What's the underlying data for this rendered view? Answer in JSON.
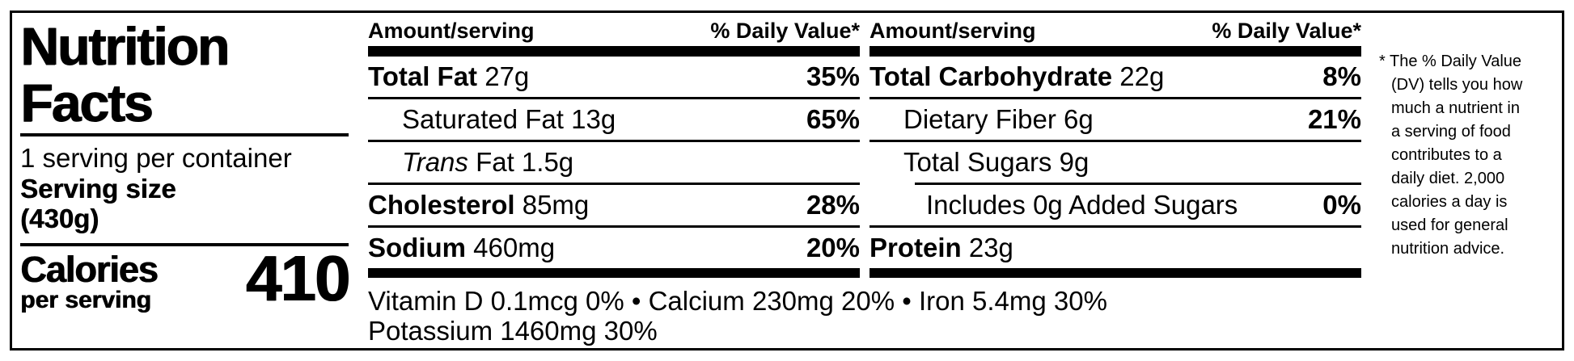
{
  "label": {
    "title_line1": "Nutrition",
    "title_line2": "Facts",
    "servings_per_container": "1 serving per container",
    "serving_size_label": "Serving size",
    "serving_size_value": "(430g)",
    "calories_label": "Calories",
    "calories_sublabel": "per serving",
    "calories_value": "410"
  },
  "columns": {
    "amount_header": "Amount/serving",
    "dv_header": "% Daily Value*",
    "middle": {
      "rows": [
        {
          "bold": "Total Fat",
          "italic": "",
          "rest": " 27g",
          "dv": "35%"
        },
        {
          "bold": "",
          "italic": "",
          "rest": "Saturated Fat 13g",
          "dv": "65%"
        },
        {
          "bold": "",
          "italic": "Trans",
          "rest": " Fat 1.5g",
          "dv": ""
        },
        {
          "bold": "Cholesterol",
          "italic": "",
          "rest": " 85mg",
          "dv": "28%"
        },
        {
          "bold": "Sodium",
          "italic": "",
          "rest": " 460mg",
          "dv": "20%"
        }
      ]
    },
    "right": {
      "rows": [
        {
          "bold": "Total Carbohydrate",
          "italic": "",
          "rest": " 22g",
          "dv": "8%"
        },
        {
          "bold": "",
          "italic": "",
          "rest": "Dietary Fiber 6g",
          "dv": "21%"
        },
        {
          "bold": "",
          "italic": "",
          "rest": "Total Sugars 9g",
          "dv": ""
        },
        {
          "bold": "",
          "italic": "",
          "rest": "Includes 0g Added Sugars",
          "dv": "0%"
        },
        {
          "bold": "Protein",
          "italic": "",
          "rest": " 23g",
          "dv": ""
        }
      ]
    }
  },
  "micronutrients": {
    "line1": "Vitamin D 0.1mcg 0% • Calcium 230mg 20% • Iron 5.4mg 30%",
    "line2": "Potassium 1460mg 30%"
  },
  "footnote": {
    "lines": [
      "* The % Daily Value",
      "(DV) tells you how",
      "much a nutrient in",
      "a serving of food",
      "contributes to a",
      "daily diet. 2,000",
      "calories a day is",
      "used for general",
      "nutrition advice."
    ]
  },
  "colors": {
    "ink": "#000000",
    "background": "#ffffff"
  }
}
